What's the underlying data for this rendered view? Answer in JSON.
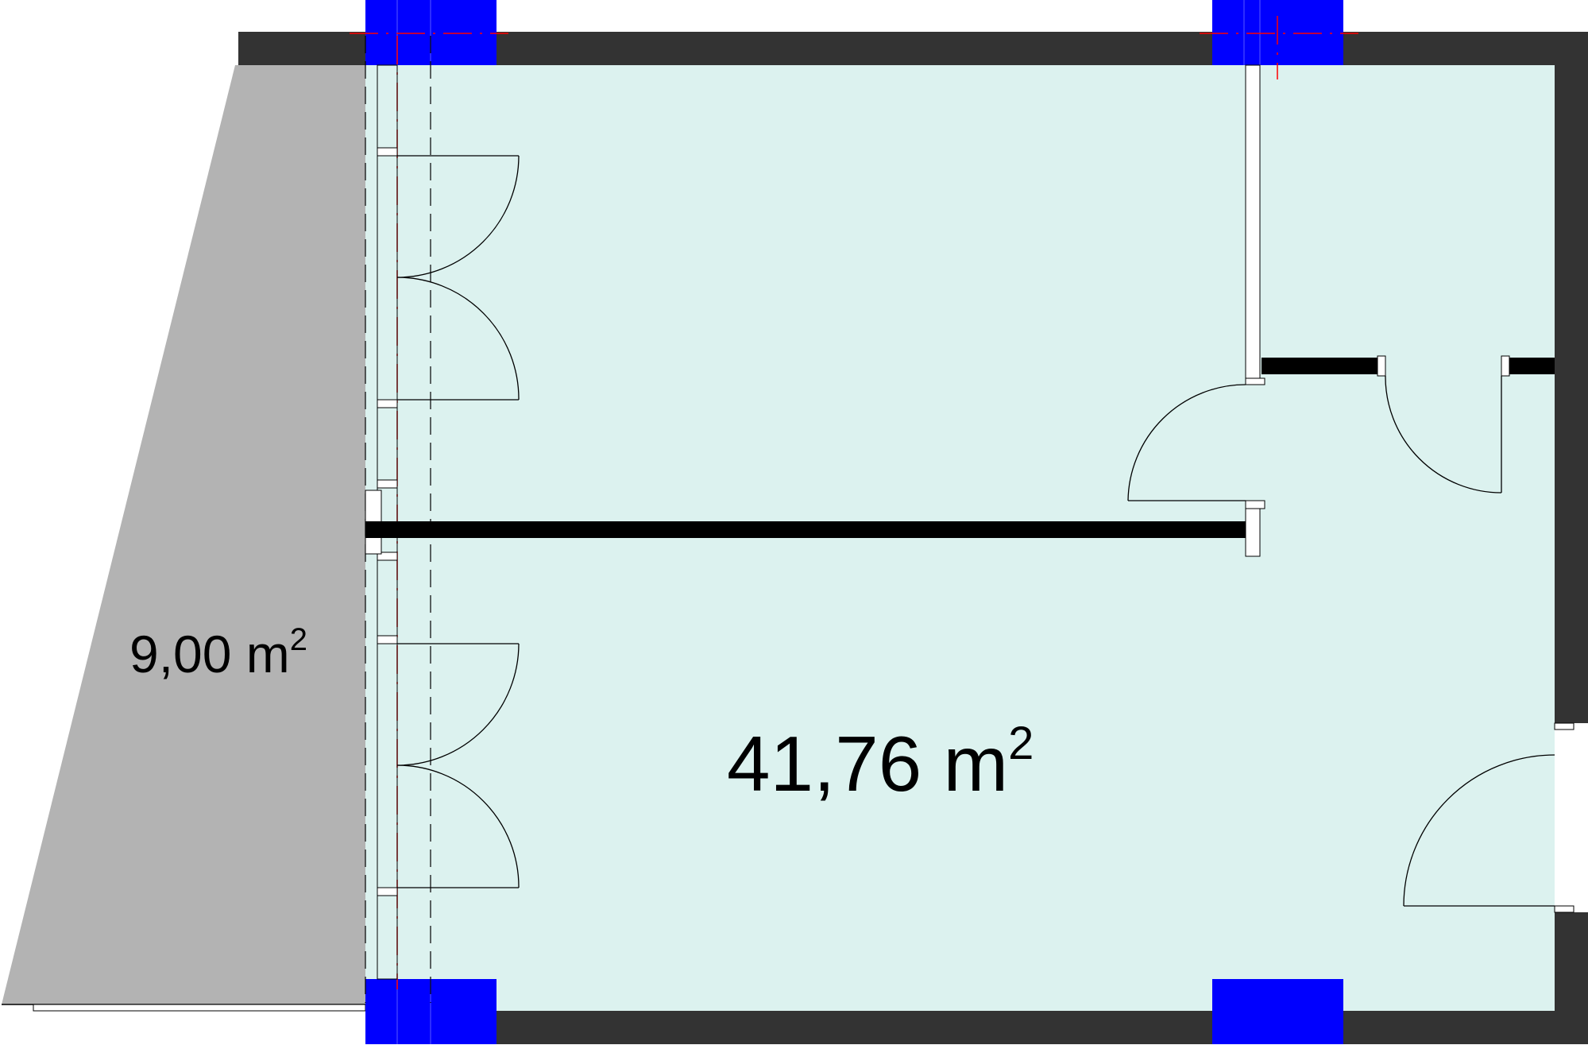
{
  "plan": {
    "main_area": {
      "value": "41,76 m",
      "superscript": "2"
    },
    "balcony_area": {
      "value": "9,00 m",
      "superscript": "2"
    }
  },
  "colors": {
    "room_fill": "#DCF2EF",
    "balcony_fill": "#B3B3B3",
    "outer_wall": "#333333",
    "column": "#0000FF",
    "partition": "#000000",
    "axis_line": "#FF0000"
  }
}
